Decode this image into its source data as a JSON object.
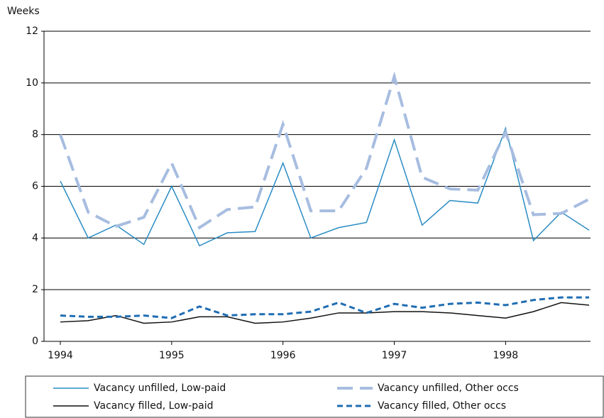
{
  "chart_data": {
    "type": "line",
    "y_label": "Weeks",
    "categories": [
      "1994",
      null,
      null,
      null,
      "1995",
      null,
      null,
      null,
      "1996",
      null,
      null,
      null,
      "1997",
      null,
      null,
      null,
      "1998",
      null,
      null,
      null
    ],
    "ylim": [
      0,
      12
    ],
    "yticks": [
      0,
      2,
      4,
      6,
      8,
      10,
      12
    ],
    "grid": true,
    "series": [
      {
        "name": "Vacancy unfilled, Low-paid",
        "color": "#2a8cc4",
        "dash": "solid",
        "width": 1.5,
        "values": [
          6.2,
          4.0,
          4.5,
          3.75,
          6.0,
          3.7,
          4.2,
          4.25,
          6.9,
          4.0,
          4.4,
          4.6,
          7.8,
          4.5,
          5.45,
          5.35,
          8.25,
          3.9,
          5.0,
          4.3
        ]
      },
      {
        "name": "Vacancy unfilled, Other occs",
        "color": "#a7bde0",
        "dash": "long",
        "width": 4,
        "values": [
          8.0,
          5.0,
          4.45,
          4.8,
          6.9,
          4.4,
          5.1,
          5.2,
          8.4,
          5.05,
          5.05,
          6.7,
          10.25,
          6.35,
          5.9,
          5.85,
          8.1,
          4.9,
          4.95,
          5.5
        ]
      },
      {
        "name": "Vacancy filled, Low-paid",
        "color": "#111111",
        "dash": "solid",
        "width": 1.5,
        "values": [
          0.75,
          0.8,
          1.0,
          0.7,
          0.75,
          0.95,
          0.95,
          0.7,
          0.75,
          0.9,
          1.1,
          1.1,
          1.15,
          1.15,
          1.1,
          1.0,
          0.9,
          1.15,
          1.5,
          1.4
        ]
      },
      {
        "name": "Vacancy filled, Other occs",
        "color": "#1f6db3",
        "dash": "short",
        "width": 3,
        "values": [
          1.0,
          0.95,
          0.95,
          1.0,
          0.9,
          1.35,
          1.0,
          1.05,
          1.05,
          1.15,
          1.5,
          1.1,
          1.45,
          1.3,
          1.45,
          1.5,
          1.4,
          1.6,
          1.7,
          1.7
        ]
      }
    ]
  }
}
